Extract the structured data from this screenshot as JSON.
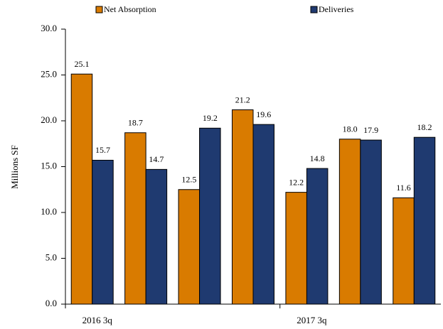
{
  "chart_data": {
    "type": "bar",
    "y_label": "Millions SF",
    "categories": [
      "2016 3q",
      null,
      null,
      null,
      "2017 3q",
      null,
      null
    ],
    "series": [
      {
        "name": "Net Absorption",
        "color": "#d97b00",
        "values": [
          25.1,
          18.7,
          12.5,
          21.2,
          12.2,
          18.0,
          11.6
        ],
        "value_labels": [
          "25.1",
          "18.7",
          "12.5",
          "21.2",
          "12.2",
          "18.0",
          "11.6"
        ]
      },
      {
        "name": "Deliveries",
        "color": "#1f3a70",
        "values": [
          15.7,
          14.7,
          19.2,
          19.6,
          14.8,
          17.9,
          18.2
        ],
        "value_labels": [
          "15.7",
          "14.7",
          "19.2",
          "19.6",
          "14.8",
          "17.9",
          "18.2"
        ]
      }
    ],
    "ylim": [
      0,
      30
    ],
    "yticks": [
      {
        "value": 0,
        "label": "0.0"
      },
      {
        "value": 5,
        "label": "5.0"
      },
      {
        "value": 10,
        "label": "10.0"
      },
      {
        "value": 15,
        "label": "15.0"
      },
      {
        "value": 20,
        "label": "20.0"
      },
      {
        "value": 25,
        "label": "25.0"
      },
      {
        "value": 30,
        "label": "30.0"
      }
    ],
    "grid": false
  }
}
